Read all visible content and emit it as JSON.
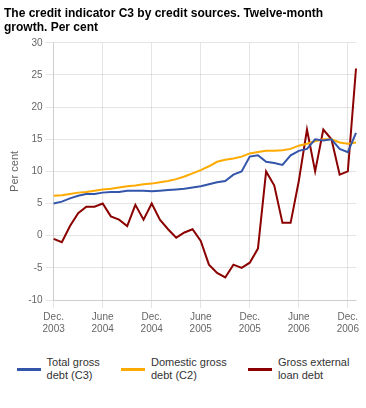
{
  "chart_data": {
    "type": "line",
    "title": "The credit indicator C3 by credit sources. Twelve-month\ngrowth. Per cent",
    "ylabel": "Per cent",
    "categories": [
      "Dec.\n2003",
      null,
      null,
      null,
      null,
      null,
      "June\n2004",
      null,
      null,
      null,
      null,
      null,
      "Dec.\n2004",
      null,
      null,
      null,
      null,
      null,
      "June\n2005",
      null,
      null,
      null,
      null,
      null,
      "Dec.\n2005",
      null,
      null,
      null,
      null,
      null,
      "June\n2006",
      null,
      null,
      null,
      null,
      null,
      "Dec.\n2006",
      null
    ],
    "series": [
      {
        "name": "Total gross\ndebt (C3)",
        "color": "#3355aa",
        "values": [
          5.0,
          5.3,
          5.8,
          6.2,
          6.5,
          6.5,
          6.7,
          6.8,
          6.8,
          7.0,
          7.0,
          7.0,
          6.9,
          7.0,
          7.1,
          7.2,
          7.3,
          7.5,
          7.7,
          8.0,
          8.3,
          8.5,
          9.5,
          10.0,
          12.3,
          12.5,
          11.5,
          11.3,
          11.0,
          12.5,
          13.2,
          13.5,
          15.0,
          14.8,
          15.0,
          13.5,
          13.0,
          16.0
        ]
      },
      {
        "name": "Domestic gross\ndebt (C2)",
        "color": "#ffaa00",
        "values": [
          6.2,
          6.3,
          6.5,
          6.7,
          6.8,
          7.0,
          7.2,
          7.3,
          7.5,
          7.7,
          7.8,
          8.0,
          8.1,
          8.3,
          8.5,
          8.8,
          9.2,
          9.7,
          10.2,
          10.8,
          11.5,
          11.8,
          12.0,
          12.3,
          12.8,
          13.0,
          13.2,
          13.2,
          13.3,
          13.5,
          14.0,
          14.3,
          14.7,
          15.0,
          15.0,
          14.5,
          14.3,
          14.5
        ]
      },
      {
        "name": "Gross external\nloan debt",
        "color": "#8b0000",
        "values": [
          -0.5,
          -1.0,
          1.5,
          3.5,
          4.5,
          4.5,
          5.0,
          3.0,
          2.5,
          1.5,
          4.8,
          2.5,
          5.0,
          2.5,
          1.0,
          -0.3,
          0.5,
          1.0,
          -0.8,
          -4.5,
          -5.8,
          -6.5,
          -4.5,
          -5.0,
          -4.2,
          -2.0,
          10.0,
          7.8,
          2.0,
          2.0,
          8.5,
          16.5,
          10.0,
          16.5,
          15.0,
          9.5,
          10.0,
          26.0
        ]
      }
    ],
    "ylim": [
      -10,
      30
    ],
    "yticks": [
      -10,
      -5,
      0,
      5,
      10,
      15,
      20,
      25,
      30
    ],
    "grid": true,
    "legend": "bottom"
  }
}
